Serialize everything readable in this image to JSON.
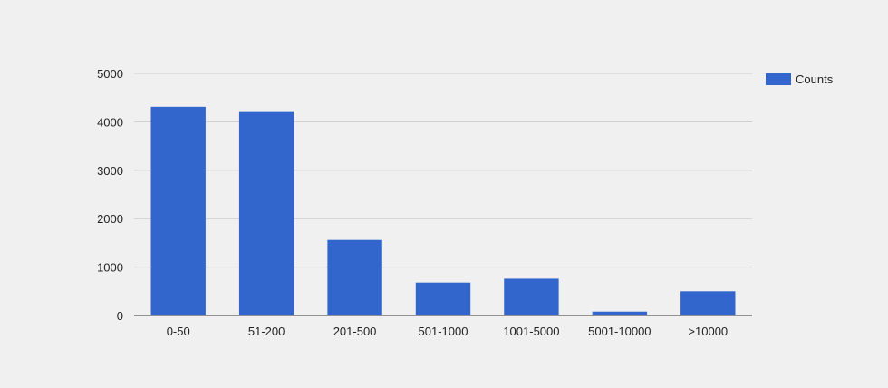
{
  "chart_data": {
    "type": "bar",
    "title": "",
    "xlabel": "",
    "ylabel": "",
    "categories": [
      "0-50",
      "51-200",
      "201-500",
      "501-1000",
      "1001-5000",
      "5001-10000",
      ">10000"
    ],
    "series": [
      {
        "name": "Counts",
        "color": "#3366cc",
        "values": [
          4310,
          4220,
          1560,
          680,
          760,
          80,
          500
        ]
      }
    ],
    "ylim": [
      0,
      5000
    ],
    "yticks": [
      "0",
      "1000",
      "2000",
      "3000",
      "4000",
      "5000"
    ],
    "grid": true,
    "legend_position": "right"
  }
}
